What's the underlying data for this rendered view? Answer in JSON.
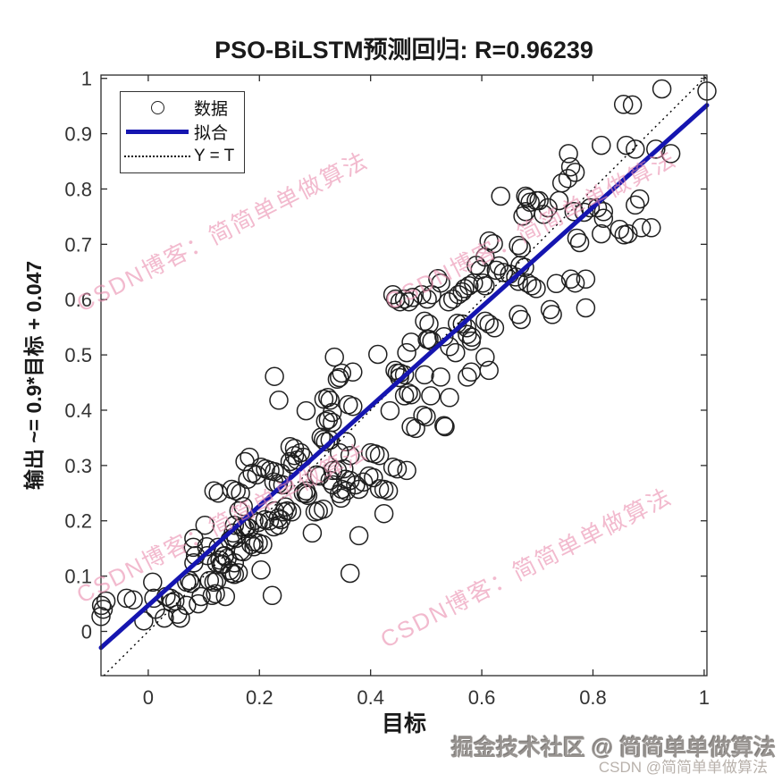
{
  "title": "PSO-BiLSTM预测回归: R=0.96239",
  "axes": {
    "xlabel": "目标",
    "ylabel": "输出 ~= 0.9*目标 + 0.047"
  },
  "legend": {
    "items": [
      {
        "marker": "circle-marker",
        "label": "数据"
      },
      {
        "marker": "fit-line-marker",
        "label": "拟合"
      },
      {
        "marker": "dotted-line-marker",
        "label": "Y = T"
      }
    ]
  },
  "watermark": {
    "diagonal_text": "CSDN博客：简简单单做算法",
    "color": "#e98cad",
    "credit_main": "掘金技术社区 @ 简简单单做算法",
    "credit_sub": "CSDN @简简单单做算法"
  },
  "chart_data": {
    "type": "scatter",
    "title": "PSO-BiLSTM预测回归: R=0.96239",
    "R": 0.96239,
    "xlabel": "目标",
    "ylabel": "输出 ~= 0.9*目标 + 0.047",
    "xlim": [
      -0.085,
      1.005
    ],
    "ylim": [
      -0.08,
      1.006
    ],
    "xticks": [
      0,
      0.2,
      0.4,
      0.6,
      0.8,
      1
    ],
    "xtick_labels": [
      "0",
      "0.2",
      "0.4",
      "0.6",
      "0.8",
      "1"
    ],
    "yticks": [
      0,
      0.1,
      0.2,
      0.3,
      0.4,
      0.5,
      0.6,
      0.7,
      0.8,
      0.9,
      1
    ],
    "ytick_labels": [
      "0",
      "0.1",
      "0.2",
      "0.3",
      "0.4",
      "0.5",
      "0.6",
      "0.7",
      "0.8",
      "0.9",
      "1"
    ],
    "grid": false,
    "legend_position": "top-left-inside",
    "fit": {
      "name": "拟合",
      "slope": 0.9,
      "intercept": 0.047,
      "color": "#1515b0",
      "width": 5
    },
    "identity": {
      "name": "Y = T",
      "style": "dotted",
      "color": "#000000",
      "width": 1.4
    },
    "marker": {
      "shape": "circle",
      "radius": 10,
      "stroke": "#1f1f1f",
      "stroke_width": 1.5,
      "fill": "none",
      "series_name": "数据"
    },
    "points": [
      [
        -0.084,
        0.047
      ],
      [
        -0.076,
        0.055
      ],
      [
        -0.085,
        0.027
      ],
      [
        -0.081,
        0.04
      ],
      [
        -0.039,
        0.06
      ],
      [
        -0.027,
        0.057
      ],
      [
        -0.008,
        0.019
      ],
      [
        0.008,
        0.089
      ],
      [
        0.01,
        0.06
      ],
      [
        0.013,
        0.04
      ],
      [
        0.029,
        0.024
      ],
      [
        0.032,
        0.063
      ],
      [
        0.04,
        0.06
      ],
      [
        0.042,
        0.052
      ],
      [
        0.048,
        0.055
      ],
      [
        0.053,
        0.031
      ],
      [
        0.058,
        0.024
      ],
      [
        0.069,
        0.047
      ],
      [
        0.069,
        0.089
      ],
      [
        0.074,
        0.092
      ],
      [
        0.077,
        0.087
      ],
      [
        0.081,
        0.152
      ],
      [
        0.082,
        0.168
      ],
      [
        0.082,
        0.124
      ],
      [
        0.085,
        0.137
      ],
      [
        0.09,
        0.05
      ],
      [
        0.095,
        0.063
      ],
      [
        0.102,
        0.192
      ],
      [
        0.105,
        0.153
      ],
      [
        0.106,
        0.137
      ],
      [
        0.11,
        0.092
      ],
      [
        0.115,
        0.065
      ],
      [
        0.118,
        0.089
      ],
      [
        0.121,
        0.068
      ],
      [
        0.123,
        0.092
      ],
      [
        0.126,
        0.152
      ],
      [
        0.129,
        0.129
      ],
      [
        0.134,
        0.121
      ],
      [
        0.137,
        0.137
      ],
      [
        0.139,
        0.063
      ],
      [
        0.147,
        0.165
      ],
      [
        0.147,
        0.11
      ],
      [
        0.153,
        0.178
      ],
      [
        0.155,
        0.192
      ],
      [
        0.155,
        0.124
      ],
      [
        0.162,
        0.106
      ],
      [
        0.163,
        0.218
      ],
      [
        0.171,
        0.226
      ],
      [
        0.177,
        0.189
      ],
      [
        0.182,
        0.186
      ],
      [
        0.185,
        0.157
      ],
      [
        0.19,
        0.2
      ],
      [
        0.19,
        0.153
      ],
      [
        0.198,
        0.197
      ],
      [
        0.203,
        0.111
      ],
      [
        0.21,
        0.202
      ],
      [
        0.218,
        0.2
      ],
      [
        0.223,
        0.065
      ],
      [
        0.226,
        0.189
      ],
      [
        0.227,
        0.218
      ],
      [
        0.235,
        0.192
      ],
      [
        0.244,
        0.216
      ],
      [
        0.247,
        0.225
      ],
      [
        0.3,
        0.216
      ],
      [
        0.118,
        0.254
      ],
      [
        0.126,
        0.25
      ],
      [
        0.123,
        0.124
      ],
      [
        0.131,
        0.121
      ],
      [
        0.137,
        0.136
      ],
      [
        0.142,
        0.132
      ],
      [
        0.15,
        0.105
      ],
      [
        0.155,
        0.103
      ],
      [
        0.15,
        0.257
      ],
      [
        0.158,
        0.254
      ],
      [
        0.166,
        0.25
      ],
      [
        0.153,
        0.17
      ],
      [
        0.158,
        0.168
      ],
      [
        0.166,
        0.145
      ],
      [
        0.171,
        0.144
      ],
      [
        0.169,
        0.189
      ],
      [
        0.174,
        0.186
      ],
      [
        0.19,
        0.162
      ],
      [
        0.198,
        0.16
      ],
      [
        0.206,
        0.157
      ],
      [
        0.174,
        0.307
      ],
      [
        0.182,
        0.315
      ],
      [
        0.179,
        0.275
      ],
      [
        0.187,
        0.286
      ],
      [
        0.195,
        0.283
      ],
      [
        0.203,
        0.297
      ],
      [
        0.211,
        0.294
      ],
      [
        0.219,
        0.291
      ],
      [
        0.227,
        0.289
      ],
      [
        0.239,
        0.286
      ],
      [
        0.226,
        0.27
      ],
      [
        0.234,
        0.267
      ],
      [
        0.242,
        0.265
      ],
      [
        0.234,
        0.205
      ],
      [
        0.239,
        0.202
      ],
      [
        0.25,
        0.218
      ],
      [
        0.258,
        0.216
      ],
      [
        0.255,
        0.334
      ],
      [
        0.263,
        0.331
      ],
      [
        0.274,
        0.323
      ],
      [
        0.255,
        0.307
      ],
      [
        0.26,
        0.302
      ],
      [
        0.263,
        0.318
      ],
      [
        0.268,
        0.31
      ],
      [
        0.279,
        0.315
      ],
      [
        0.279,
        0.25
      ],
      [
        0.284,
        0.249
      ],
      [
        0.295,
        0.178
      ],
      [
        0.284,
        0.399
      ],
      [
        0.303,
        0.283
      ],
      [
        0.308,
        0.281
      ],
      [
        0.306,
        0.218
      ],
      [
        0.311,
        0.351
      ],
      [
        0.315,
        0.347
      ],
      [
        0.319,
        0.343
      ],
      [
        0.327,
        0.346
      ],
      [
        0.315,
        0.221
      ],
      [
        0.316,
        0.42
      ],
      [
        0.323,
        0.423
      ],
      [
        0.327,
        0.418
      ],
      [
        0.331,
        0.396
      ],
      [
        0.319,
        0.38
      ],
      [
        0.331,
        0.378
      ],
      [
        0.324,
        0.383
      ],
      [
        0.332,
        0.291
      ],
      [
        0.34,
        0.291
      ],
      [
        0.352,
        0.294
      ],
      [
        0.327,
        0.273
      ],
      [
        0.332,
        0.265
      ],
      [
        0.344,
        0.249
      ],
      [
        0.347,
        0.241
      ],
      [
        0.284,
        0.254
      ],
      [
        0.287,
        0.246
      ],
      [
        0.335,
        0.496
      ],
      [
        0.344,
        0.459
      ],
      [
        0.348,
        0.467
      ],
      [
        0.34,
        0.456
      ],
      [
        0.356,
        0.343
      ],
      [
        0.363,
        0.318
      ],
      [
        0.344,
        0.323
      ],
      [
        0.36,
        0.41
      ],
      [
        0.368,
        0.407
      ],
      [
        0.368,
        0.469
      ],
      [
        0.373,
        0.265
      ],
      [
        0.379,
        0.257
      ],
      [
        0.387,
        0.27
      ],
      [
        0.355,
        0.275
      ],
      [
        0.363,
        0.273
      ],
      [
        0.348,
        0.257
      ],
      [
        0.356,
        0.254
      ],
      [
        0.363,
        0.105
      ],
      [
        0.379,
        0.173
      ],
      [
        0.397,
        0.281
      ],
      [
        0.405,
        0.278
      ],
      [
        0.4,
        0.323
      ],
      [
        0.408,
        0.321
      ],
      [
        0.416,
        0.318
      ],
      [
        0.413,
        0.501
      ],
      [
        0.424,
        0.213
      ],
      [
        0.435,
        0.399
      ],
      [
        0.44,
        0.297
      ],
      [
        0.448,
        0.294
      ],
      [
        0.416,
        0.258
      ],
      [
        0.424,
        0.257
      ],
      [
        0.432,
        0.254
      ],
      [
        0.444,
        0.472
      ],
      [
        0.453,
        0.467
      ],
      [
        0.461,
        0.464
      ],
      [
        0.448,
        0.467
      ],
      [
        0.452,
        0.459
      ],
      [
        0.465,
        0.504
      ],
      [
        0.473,
        0.523
      ],
      [
        0.461,
        0.426
      ],
      [
        0.468,
        0.431
      ],
      [
        0.473,
        0.428
      ],
      [
        0.465,
        0.291
      ],
      [
        0.227,
        0.461
      ],
      [
        0.235,
        0.418
      ],
      [
        0.44,
        0.609
      ],
      [
        0.445,
        0.601
      ],
      [
        0.453,
        0.596
      ],
      [
        0.461,
        0.601
      ],
      [
        0.469,
        0.596
      ],
      [
        0.476,
        0.604
      ],
      [
        0.492,
        0.609
      ],
      [
        0.502,
        0.601
      ],
      [
        0.51,
        0.609
      ],
      [
        0.497,
        0.464
      ],
      [
        0.508,
        0.426
      ],
      [
        0.502,
        0.528
      ],
      [
        0.51,
        0.525
      ],
      [
        0.526,
        0.46
      ],
      [
        0.532,
        0.372
      ],
      [
        0.534,
        0.37
      ],
      [
        0.494,
        0.391
      ],
      [
        0.5,
        0.388
      ],
      [
        0.473,
        0.37
      ],
      [
        0.481,
        0.367
      ],
      [
        0.497,
        0.561
      ],
      [
        0.505,
        0.556
      ],
      [
        0.505,
        0.528
      ],
      [
        0.521,
        0.638
      ],
      [
        0.526,
        0.63
      ],
      [
        0.532,
        0.533
      ],
      [
        0.54,
        0.596
      ],
      [
        0.548,
        0.601
      ],
      [
        0.542,
        0.515
      ],
      [
        0.542,
        0.423
      ],
      [
        0.553,
        0.504
      ],
      [
        0.556,
        0.557
      ],
      [
        0.558,
        0.609
      ],
      [
        0.565,
        0.556
      ],
      [
        0.565,
        0.614
      ],
      [
        0.569,
        0.62
      ],
      [
        0.573,
        0.549
      ],
      [
        0.574,
        0.537
      ],
      [
        0.577,
        0.625
      ],
      [
        0.581,
        0.525
      ],
      [
        0.581,
        0.469
      ],
      [
        0.574,
        0.46
      ],
      [
        0.582,
        0.532
      ],
      [
        0.585,
        0.63
      ],
      [
        0.59,
        0.662
      ],
      [
        0.597,
        0.654
      ],
      [
        0.602,
        0.63
      ],
      [
        0.606,
        0.625
      ],
      [
        0.606,
        0.677
      ],
      [
        0.606,
        0.561
      ],
      [
        0.613,
        0.556
      ],
      [
        0.623,
        0.549
      ],
      [
        0.626,
        0.653
      ],
      [
        0.631,
        0.661
      ],
      [
        0.634,
        0.787
      ],
      [
        0.639,
        0.649
      ],
      [
        0.65,
        0.646
      ],
      [
        0.661,
        0.641
      ],
      [
        0.666,
        0.633
      ],
      [
        0.666,
        0.698
      ],
      [
        0.671,
        0.693
      ],
      [
        0.669,
        0.662
      ],
      [
        0.677,
        0.658
      ],
      [
        0.666,
        0.573
      ],
      [
        0.671,
        0.564
      ],
      [
        0.679,
        0.787
      ],
      [
        0.682,
        0.63
      ],
      [
        0.69,
        0.625
      ],
      [
        0.698,
        0.62
      ],
      [
        0.687,
        0.776
      ],
      [
        0.703,
        0.779
      ],
      [
        0.613,
        0.706
      ],
      [
        0.621,
        0.701
      ],
      [
        0.606,
        0.496
      ],
      [
        0.613,
        0.472
      ],
      [
        0.723,
        0.582
      ],
      [
        0.727,
        0.573
      ],
      [
        0.734,
        0.629
      ],
      [
        0.76,
        0.637
      ],
      [
        0.768,
        0.63
      ],
      [
        0.739,
        0.779
      ],
      [
        0.682,
        0.784
      ],
      [
        0.698,
        0.779
      ],
      [
        0.679,
        0.759
      ],
      [
        0.674,
        0.751
      ],
      [
        0.711,
        0.754
      ],
      [
        0.719,
        0.766
      ],
      [
        0.766,
        0.759
      ],
      [
        0.784,
        0.758
      ],
      [
        0.771,
        0.711
      ],
      [
        0.776,
        0.703
      ],
      [
        0.787,
        0.637
      ],
      [
        0.787,
        0.585
      ],
      [
        0.744,
        0.811
      ],
      [
        0.755,
        0.819
      ],
      [
        0.768,
        0.83
      ],
      [
        0.76,
        0.84
      ],
      [
        0.756,
        0.864
      ],
      [
        0.815,
        0.879
      ],
      [
        0.86,
        0.879
      ],
      [
        0.876,
        0.872
      ],
      [
        0.913,
        0.872
      ],
      [
        0.94,
        0.864
      ],
      [
        0.855,
        0.953
      ],
      [
        0.871,
        0.952
      ],
      [
        0.924,
        0.981
      ],
      [
        1.005,
        0.977
      ],
      [
        0.815,
        0.719
      ],
      [
        0.819,
        0.747
      ],
      [
        0.856,
        0.717
      ],
      [
        0.863,
        0.719
      ],
      [
        0.887,
        0.73
      ],
      [
        0.905,
        0.73
      ],
      [
        0.884,
        0.782
      ],
      [
        0.848,
        0.727
      ],
      [
        0.876,
        0.771
      ],
      [
        0.795,
        0.766
      ],
      [
        0.808,
        0.766
      ],
      [
        0.819,
        0.759
      ]
    ]
  }
}
